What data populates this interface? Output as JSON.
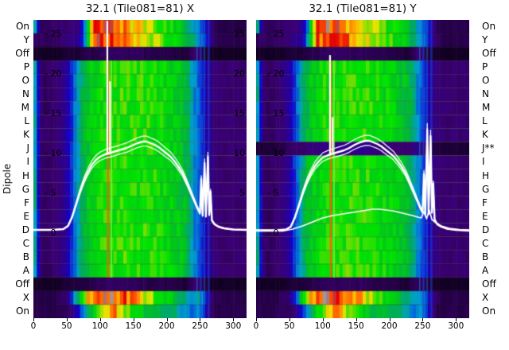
{
  "figure": {
    "left_axis_label": "Dipole",
    "row_labels_left": [
      "On",
      "Y",
      "Off",
      "P",
      "O",
      "N",
      "M",
      "L",
      "K",
      "J",
      "I",
      "H",
      "G",
      "F",
      "E",
      "D",
      "C",
      "B",
      "A",
      "Off",
      "X",
      "On"
    ],
    "row_labels_right": [
      "On",
      "Y",
      "Off",
      "P",
      "O",
      "N",
      "M",
      "L",
      "K",
      "J**",
      "I",
      "H",
      "G",
      "F",
      "E",
      "D",
      "C",
      "B",
      "A",
      "Off",
      "X",
      "On"
    ],
    "colormap": [
      [
        0,
        "#000000"
      ],
      [
        0.06,
        "#3a0070"
      ],
      [
        0.14,
        "#1400c8"
      ],
      [
        0.22,
        "#0064dc"
      ],
      [
        0.28,
        "#00a0c8"
      ],
      [
        0.34,
        "#00a864"
      ],
      [
        0.42,
        "#00c31e"
      ],
      [
        0.52,
        "#00e400"
      ],
      [
        0.6,
        "#8cdc00"
      ],
      [
        0.68,
        "#e6e600"
      ],
      [
        0.76,
        "#ffb400"
      ],
      [
        0.84,
        "#ff5a00"
      ],
      [
        0.92,
        "#e10000"
      ],
      [
        1,
        "#9b9b9b"
      ]
    ],
    "line_color": "#ffffff",
    "profiles": {
      "rainbowA": [
        0.38,
        0.05,
        0.05,
        0.05,
        0.06,
        0.06,
        0.07,
        0.08,
        0.3,
        0.88,
        0.92,
        0.9,
        0.87,
        0.83,
        0.78,
        0.73,
        0.69,
        0.65,
        0.61,
        0.57,
        0.52,
        0.48,
        0.44,
        0.38,
        0.31,
        0.24,
        0.12,
        0.05,
        0.04,
        0.04,
        0.04,
        0.04,
        0.04
      ],
      "rainbowB": [
        0.05,
        0.05,
        0.05,
        0.05,
        0.06,
        0.07,
        0.08,
        0.1,
        0.35,
        0.82,
        0.88,
        0.91,
        0.92,
        0.88,
        0.82,
        0.76,
        0.71,
        0.67,
        0.63,
        0.59,
        0.54,
        0.5,
        0.45,
        0.39,
        0.33,
        0.26,
        0.13,
        0.06,
        0.04,
        0.04,
        0.04,
        0.04,
        0.04
      ],
      "dark": [
        0.02,
        0.02,
        0.02,
        0.02,
        0.02,
        0.03,
        0.03,
        0.03,
        0.04,
        0.04,
        0.05,
        0.05,
        0.05,
        0.05,
        0.05,
        0.05,
        0.05,
        0.04,
        0.04,
        0.04,
        0.04,
        0.04,
        0.03,
        0.03,
        0.06,
        0.05,
        0.03,
        0.02,
        0.02,
        0.02,
        0.02,
        0.02,
        0.02
      ],
      "body": [
        0.38,
        0.06,
        0.05,
        0.06,
        0.07,
        0.1,
        0.2,
        0.33,
        0.42,
        0.47,
        0.5,
        0.52,
        0.51,
        0.53,
        0.54,
        0.53,
        0.52,
        0.53,
        0.51,
        0.5,
        0.48,
        0.46,
        0.43,
        0.39,
        0.27,
        0.2,
        0.1,
        0.07,
        0.06,
        0.06,
        0.06,
        0.06,
        0.06
      ],
      "flagged": [
        0.03,
        0.03,
        0.03,
        0.03,
        0.04,
        0.05,
        0.06,
        0.06,
        0.07,
        0.07,
        0.08,
        0.08,
        0.08,
        0.08,
        0.08,
        0.08,
        0.08,
        0.08,
        0.07,
        0.07,
        0.07,
        0.07,
        0.06,
        0.06,
        0.08,
        0.07,
        0.04,
        0.03,
        0.03,
        0.03,
        0.03,
        0.03,
        0.03
      ],
      "rainbowC": [
        0.04,
        0.04,
        0.04,
        0.04,
        0.05,
        0.06,
        0.2,
        0.45,
        0.7,
        0.86,
        0.92,
        0.91,
        0.89,
        0.86,
        0.82,
        0.77,
        0.71,
        0.65,
        0.59,
        0.53,
        0.47,
        0.41,
        0.35,
        0.29,
        0.24,
        0.3,
        0.12,
        0.05,
        0.04,
        0.04,
        0.04,
        0.04,
        0.04
      ],
      "rainbowD": [
        0.04,
        0.04,
        0.04,
        0.04,
        0.05,
        0.05,
        0.08,
        0.16,
        0.3,
        0.46,
        0.6,
        0.72,
        0.8,
        0.68,
        0.58,
        0.5,
        0.45,
        0.42,
        0.4,
        0.38,
        0.36,
        0.33,
        0.3,
        0.26,
        0.22,
        0.27,
        0.1,
        0.04,
        0.04,
        0.04,
        0.04,
        0.04,
        0.04
      ]
    }
  },
  "chart_data": [
    {
      "type": "heatmap",
      "panel": "X",
      "title": "32.1 (Tile081=81) X",
      "x_range": [
        0,
        320
      ],
      "x_ticks": [
        0,
        50,
        100,
        150,
        200,
        250,
        300
      ],
      "amp_ticks": [
        {
          "v": 25,
          "label": "- 25"
        },
        {
          "v": 20,
          "label": "- 20"
        },
        {
          "v": 15,
          "label": "- 15"
        },
        {
          "v": 10,
          "label": "- 10"
        },
        {
          "v": 5,
          "label": "- 5"
        },
        {
          "v": 0,
          "label": "- 0"
        }
      ],
      "amp_ticks_right": [
        {
          "v": 25,
          "label": "25"
        },
        {
          "v": 20,
          "label": "20"
        },
        {
          "v": 15,
          "label": "15"
        },
        {
          "v": 10,
          "label": "10"
        },
        {
          "v": 5,
          "label": "5"
        }
      ],
      "row_profiles": [
        "rainbowA",
        "rainbowB",
        "dark",
        "body",
        "body",
        "body",
        "body",
        "body",
        "body",
        "body",
        "body",
        "body",
        "body",
        "body",
        "body",
        "body",
        "body",
        "body",
        "body",
        "dark",
        "rainbowC",
        "rainbowD"
      ],
      "features": {
        "orange_line_x": 112,
        "green_line_x": 117,
        "blue_lines": [
          246,
          251,
          257,
          263
        ]
      },
      "bandpass_spread": [
        0.95,
        1.0,
        1.06
      ],
      "bandpass": [
        [
          0,
          0.4
        ],
        [
          30,
          0.4
        ],
        [
          45,
          0.5
        ],
        [
          52,
          0.9
        ],
        [
          58,
          2.0
        ],
        [
          64,
          3.6
        ],
        [
          70,
          5.2
        ],
        [
          76,
          6.6
        ],
        [
          82,
          7.7
        ],
        [
          88,
          8.6
        ],
        [
          94,
          9.2
        ],
        [
          100,
          9.6
        ],
        [
          108,
          9.9
        ],
        [
          116,
          10.1
        ],
        [
          124,
          10.3
        ],
        [
          132,
          10.5
        ],
        [
          140,
          10.7
        ],
        [
          148,
          11.0
        ],
        [
          156,
          11.3
        ],
        [
          164,
          11.5
        ],
        [
          170,
          11.5
        ],
        [
          176,
          11.3
        ],
        [
          182,
          11.1
        ],
        [
          188,
          10.8
        ],
        [
          194,
          10.4
        ],
        [
          200,
          10.0
        ],
        [
          206,
          9.6
        ],
        [
          212,
          9.0
        ],
        [
          218,
          8.3
        ],
        [
          224,
          7.5
        ],
        [
          230,
          6.4
        ],
        [
          236,
          5.2
        ],
        [
          242,
          4.0
        ],
        [
          246,
          3.2
        ],
        [
          250,
          2.5
        ],
        [
          252,
          6.8
        ],
        [
          254,
          2.2
        ],
        [
          257,
          8.8
        ],
        [
          259,
          2.1
        ],
        [
          262,
          9.6
        ],
        [
          264,
          2.3
        ],
        [
          266,
          5.2
        ],
        [
          268,
          1.6
        ],
        [
          272,
          1.1
        ],
        [
          278,
          0.8
        ],
        [
          286,
          0.6
        ],
        [
          300,
          0.45
        ],
        [
          320,
          0.4
        ]
      ],
      "spikes": [
        [
          111,
          26.6
        ],
        [
          115,
          19.0
        ]
      ],
      "flagged_curve": null
    },
    {
      "type": "heatmap",
      "panel": "Y",
      "title": "32.1 (Tile081=81) Y",
      "x_range": [
        0,
        320
      ],
      "x_ticks": [
        0,
        50,
        100,
        150,
        200,
        250,
        300
      ],
      "amp_ticks": [
        {
          "v": 25,
          "label": "- 25"
        },
        {
          "v": 20,
          "label": "- 20"
        },
        {
          "v": 15,
          "label": "- 15"
        },
        {
          "v": 10,
          "label": "- 10"
        },
        {
          "v": 5,
          "label": "- 5"
        },
        {
          "v": 0,
          "label": "- 0"
        }
      ],
      "amp_ticks_right": [],
      "row_profiles": [
        "rainbowA",
        "rainbowB",
        "dark",
        "body",
        "body",
        "body",
        "body",
        "body",
        "body",
        "flagged",
        "body",
        "body",
        "body",
        "body",
        "body",
        "body",
        "body",
        "body",
        "body",
        "dark",
        "rainbowC",
        "rainbowD"
      ],
      "features": {
        "orange_line_x": 112,
        "green_line_x": 117,
        "blue_lines": [
          246,
          251,
          257,
          263
        ]
      },
      "bandpass_spread": [
        0.95,
        1.0,
        1.06
      ],
      "bandpass": [
        [
          0,
          0.35
        ],
        [
          30,
          0.35
        ],
        [
          45,
          0.45
        ],
        [
          52,
          0.8
        ],
        [
          58,
          1.9
        ],
        [
          64,
          3.4
        ],
        [
          70,
          5.0
        ],
        [
          76,
          6.4
        ],
        [
          82,
          7.5
        ],
        [
          88,
          8.4
        ],
        [
          94,
          9.0
        ],
        [
          100,
          9.5
        ],
        [
          108,
          9.8
        ],
        [
          116,
          10.0
        ],
        [
          124,
          10.2
        ],
        [
          132,
          10.4
        ],
        [
          140,
          10.7
        ],
        [
          148,
          11.1
        ],
        [
          156,
          11.4
        ],
        [
          164,
          11.6
        ],
        [
          170,
          11.6
        ],
        [
          176,
          11.4
        ],
        [
          182,
          11.2
        ],
        [
          188,
          10.9
        ],
        [
          194,
          10.5
        ],
        [
          200,
          10.1
        ],
        [
          206,
          9.7
        ],
        [
          212,
          9.1
        ],
        [
          218,
          8.4
        ],
        [
          224,
          7.6
        ],
        [
          230,
          6.5
        ],
        [
          236,
          5.3
        ],
        [
          242,
          4.1
        ],
        [
          246,
          3.3
        ],
        [
          250,
          2.6
        ],
        [
          252,
          7.4
        ],
        [
          254,
          2.3
        ],
        [
          257,
          13.0
        ],
        [
          259,
          2.4
        ],
        [
          262,
          12.2
        ],
        [
          264,
          2.6
        ],
        [
          266,
          6.2
        ],
        [
          268,
          1.7
        ],
        [
          272,
          1.1
        ],
        [
          278,
          0.8
        ],
        [
          286,
          0.55
        ],
        [
          300,
          0.4
        ],
        [
          320,
          0.3
        ]
      ],
      "spikes": [
        [
          111,
          22.3
        ],
        [
          115,
          14.5
        ]
      ],
      "flagged_curve": [
        [
          0,
          0.25
        ],
        [
          40,
          0.25
        ],
        [
          55,
          0.5
        ],
        [
          70,
          0.9
        ],
        [
          85,
          1.4
        ],
        [
          100,
          1.9
        ],
        [
          115,
          2.2
        ],
        [
          130,
          2.4
        ],
        [
          145,
          2.6
        ],
        [
          160,
          2.8
        ],
        [
          175,
          3.0
        ],
        [
          185,
          3.0
        ],
        [
          195,
          2.9
        ],
        [
          205,
          2.8
        ],
        [
          215,
          2.6
        ],
        [
          225,
          2.4
        ],
        [
          235,
          2.2
        ],
        [
          243,
          2.0
        ],
        [
          248,
          1.9
        ],
        [
          252,
          2.7
        ],
        [
          256,
          1.8
        ],
        [
          260,
          2.9
        ],
        [
          264,
          1.7
        ],
        [
          270,
          1.3
        ],
        [
          278,
          0.9
        ],
        [
          290,
          0.6
        ],
        [
          305,
          0.45
        ],
        [
          320,
          0.4
        ]
      ]
    }
  ]
}
